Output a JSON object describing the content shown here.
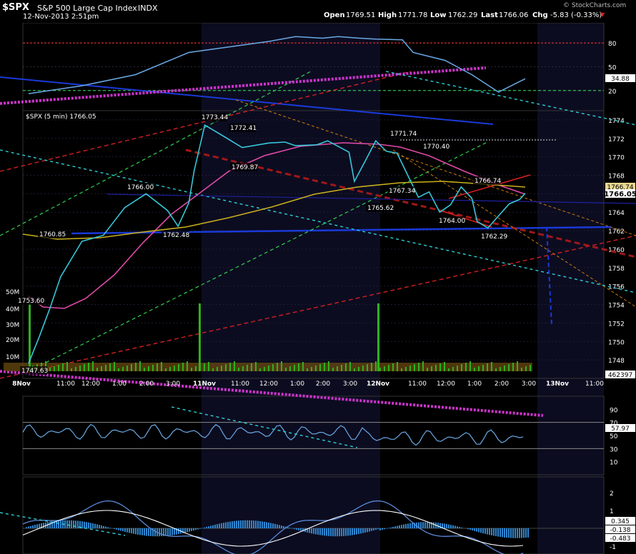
{
  "header": {
    "symbol": "$SPX",
    "name": "S&P 500 Large Cap Index",
    "exchange": "INDX",
    "datetime": "12-Nov-2013 2:51pm",
    "open_label": "Open",
    "open": "1769.51",
    "high_label": "High",
    "high": "1771.78",
    "low_label": "Low",
    "low": "1762.29",
    "last_label": "Last",
    "last": "1766.06",
    "chg_label": "Chg",
    "chg": "-5.83 (-0.33%)",
    "chg_arrow": "▼",
    "credit": "© StockCharts.com"
  },
  "colors": {
    "background": "#000000",
    "day_shade": "#0c0c20",
    "price": "#36c7d8",
    "ma_short": "#e04aa8",
    "ma_long": "#c9b01e",
    "rsi": "#6aa9e6",
    "grid": "#2a2a40",
    "ref_red": "#d93030",
    "ref_green": "#30d050",
    "up_arrow_red": "#e02020",
    "volume": "#30b020"
  },
  "chart_data": [
    {
      "type": "line",
      "panel": "RSI (top)",
      "ylim": [
        0,
        100
      ],
      "yticks": [
        20,
        50,
        80
      ],
      "value_label": "34.88",
      "ref_lines": [
        20,
        80
      ],
      "x": [
        0,
        10,
        20,
        30,
        45,
        50,
        55,
        58,
        62,
        65,
        70,
        72,
        78,
        83,
        88,
        93
      ],
      "values": [
        16,
        26,
        40,
        68,
        82,
        88,
        86,
        88,
        86,
        85,
        84,
        68,
        58,
        40,
        18,
        34.88
      ]
    },
    {
      "type": "line",
      "panel": "price",
      "legend": "$SPX (5 min) 1766.05",
      "ylim": [
        1746,
        1775
      ],
      "yticks": [
        "1748",
        "1750",
        "1752",
        "1754",
        "1756",
        "1758",
        "1760",
        "1762",
        "1764",
        "1766",
        "1768",
        "1770",
        "1772",
        "1774"
      ],
      "last_price_label": "1766.05",
      "ma_value_label": "1766.74",
      "volume_label": "462397",
      "volume_ticks": [
        "10M",
        "20M",
        "30M",
        "40M",
        "50M"
      ],
      "xticks": [
        "8Nov",
        "11:00",
        "12:00",
        "1:00",
        "2:00",
        "3:00",
        "11Nov",
        "11:00",
        "12:00",
        "1:00",
        "2:00",
        "3:00",
        "12Nov",
        "11:00",
        "12:00",
        "1:00",
        "2:00",
        "3:00",
        "13Nov",
        "11:00"
      ],
      "annotations": [
        "1747.63",
        "1753.60",
        "1760.85",
        "1766.00",
        "1762.48",
        "1773.44",
        "1772.41",
        "1769.87",
        "1771.74",
        "1770.40",
        "1767.34",
        "1765.62",
        "1764.00",
        "1766.74",
        "1762.29"
      ],
      "x": [
        0,
        2,
        4,
        6,
        10,
        14,
        18,
        22,
        26,
        28,
        30,
        31,
        33,
        36,
        40,
        45,
        48,
        50,
        54,
        56,
        60,
        61,
        63,
        65,
        67,
        69,
        71,
        73,
        75,
        77,
        79,
        81,
        83,
        84,
        86,
        88,
        90,
        92,
        93
      ],
      "values": [
        1747.63,
        1750.5,
        1753.6,
        1757,
        1760.85,
        1761.5,
        1764.5,
        1766.0,
        1764.2,
        1762.48,
        1765,
        1768.5,
        1773.44,
        1772.41,
        1771.0,
        1771.5,
        1771.6,
        1771.2,
        1771.3,
        1771.74,
        1770.5,
        1767.34,
        1769.5,
        1771.74,
        1770.6,
        1770.4,
        1768,
        1765.62,
        1766.2,
        1764.0,
        1764.8,
        1766.74,
        1765.5,
        1763.0,
        1762.29,
        1763.6,
        1764.9,
        1765.4,
        1766.05
      ]
    },
    {
      "type": "line",
      "panel": "RSI (lower)",
      "ylim": [
        -10,
        110
      ],
      "yticks": [
        "10",
        "30",
        "50",
        "70",
        "90"
      ],
      "value_label": "57.97",
      "ref_lines": [
        30,
        70
      ]
    },
    {
      "type": "line",
      "panel": "MACD",
      "yticks": [
        "-1",
        "0",
        "1",
        "2"
      ],
      "value_labels": [
        "0.345",
        "-0.138",
        "-0.483"
      ]
    }
  ]
}
